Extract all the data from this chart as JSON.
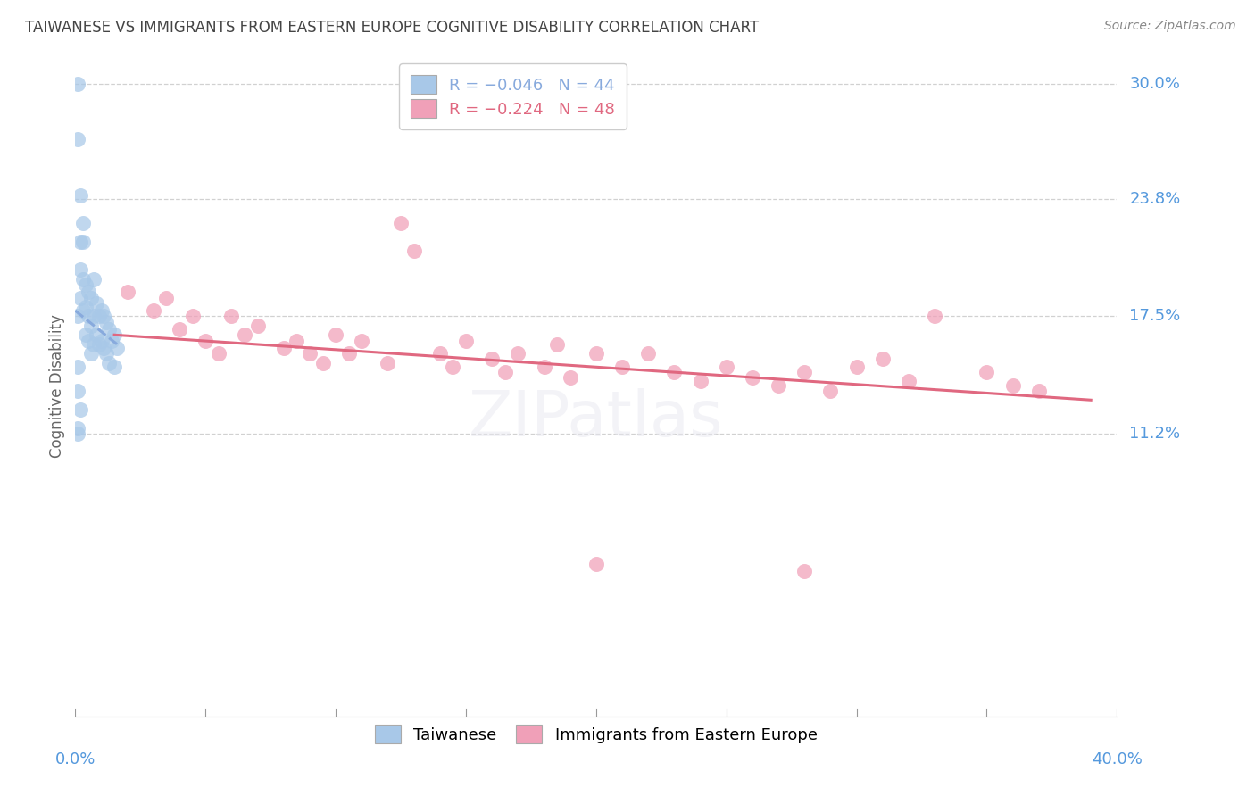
{
  "title": "TAIWANESE VS IMMIGRANTS FROM EASTERN EUROPE COGNITIVE DISABILITY CORRELATION CHART",
  "source": "Source: ZipAtlas.com",
  "ylabel": "Cognitive Disability",
  "ytick_positions": [
    0.112,
    0.175,
    0.238,
    0.3
  ],
  "ytick_labels": [
    "11.2%",
    "17.5%",
    "23.8%",
    "30.0%"
  ],
  "xmin": 0.0,
  "xmax": 0.4,
  "ymin": -0.04,
  "ymax": 0.315,
  "legend_r1": "-0.046",
  "legend_n1": "44",
  "legend_r2": "-0.224",
  "legend_n2": "48",
  "taiwanese_color": "#a8c8e8",
  "eastern_europe_color": "#f0a0b8",
  "trendline1_color": "#88aadd",
  "trendline2_color": "#e06880",
  "background_color": "#ffffff",
  "grid_color": "#cccccc",
  "title_color": "#444444",
  "axis_label_color": "#5599dd",
  "tw_x": [
    0.001,
    0.001,
    0.001,
    0.002,
    0.002,
    0.002,
    0.003,
    0.003,
    0.003,
    0.004,
    0.004,
    0.004,
    0.005,
    0.005,
    0.005,
    0.006,
    0.006,
    0.006,
    0.007,
    0.007,
    0.007,
    0.008,
    0.008,
    0.009,
    0.009,
    0.01,
    0.01,
    0.011,
    0.011,
    0.012,
    0.012,
    0.013,
    0.013,
    0.014,
    0.015,
    0.015,
    0.016,
    0.002,
    0.003,
    0.001,
    0.001,
    0.002,
    0.001,
    0.001
  ],
  "tw_y": [
    0.3,
    0.27,
    0.175,
    0.215,
    0.2,
    0.185,
    0.215,
    0.195,
    0.178,
    0.192,
    0.18,
    0.165,
    0.188,
    0.175,
    0.162,
    0.185,
    0.17,
    0.155,
    0.195,
    0.175,
    0.16,
    0.182,
    0.165,
    0.175,
    0.16,
    0.178,
    0.162,
    0.175,
    0.158,
    0.172,
    0.155,
    0.168,
    0.15,
    0.162,
    0.165,
    0.148,
    0.158,
    0.24,
    0.225,
    0.148,
    0.135,
    0.125,
    0.115,
    0.112
  ],
  "ee_x": [
    0.02,
    0.03,
    0.035,
    0.04,
    0.045,
    0.05,
    0.055,
    0.06,
    0.065,
    0.07,
    0.08,
    0.085,
    0.09,
    0.095,
    0.1,
    0.105,
    0.11,
    0.12,
    0.125,
    0.13,
    0.14,
    0.145,
    0.15,
    0.16,
    0.165,
    0.17,
    0.18,
    0.185,
    0.19,
    0.2,
    0.21,
    0.22,
    0.23,
    0.24,
    0.25,
    0.26,
    0.27,
    0.28,
    0.29,
    0.3,
    0.31,
    0.32,
    0.33,
    0.35,
    0.36,
    0.37,
    0.2,
    0.28
  ],
  "ee_y": [
    0.188,
    0.178,
    0.185,
    0.168,
    0.175,
    0.162,
    0.155,
    0.175,
    0.165,
    0.17,
    0.158,
    0.162,
    0.155,
    0.15,
    0.165,
    0.155,
    0.162,
    0.15,
    0.225,
    0.21,
    0.155,
    0.148,
    0.162,
    0.152,
    0.145,
    0.155,
    0.148,
    0.16,
    0.142,
    0.155,
    0.148,
    0.155,
    0.145,
    0.14,
    0.148,
    0.142,
    0.138,
    0.145,
    0.135,
    0.148,
    0.152,
    0.14,
    0.175,
    0.145,
    0.138,
    0.135,
    0.042,
    0.038
  ],
  "tw_trend_x0": 0.0,
  "tw_trend_x1": 0.016,
  "tw_trend_y0": 0.178,
  "tw_trend_y1": 0.16,
  "ee_trend_x0": 0.015,
  "ee_trend_x1": 0.39,
  "ee_trend_y0": 0.165,
  "ee_trend_y1": 0.13
}
